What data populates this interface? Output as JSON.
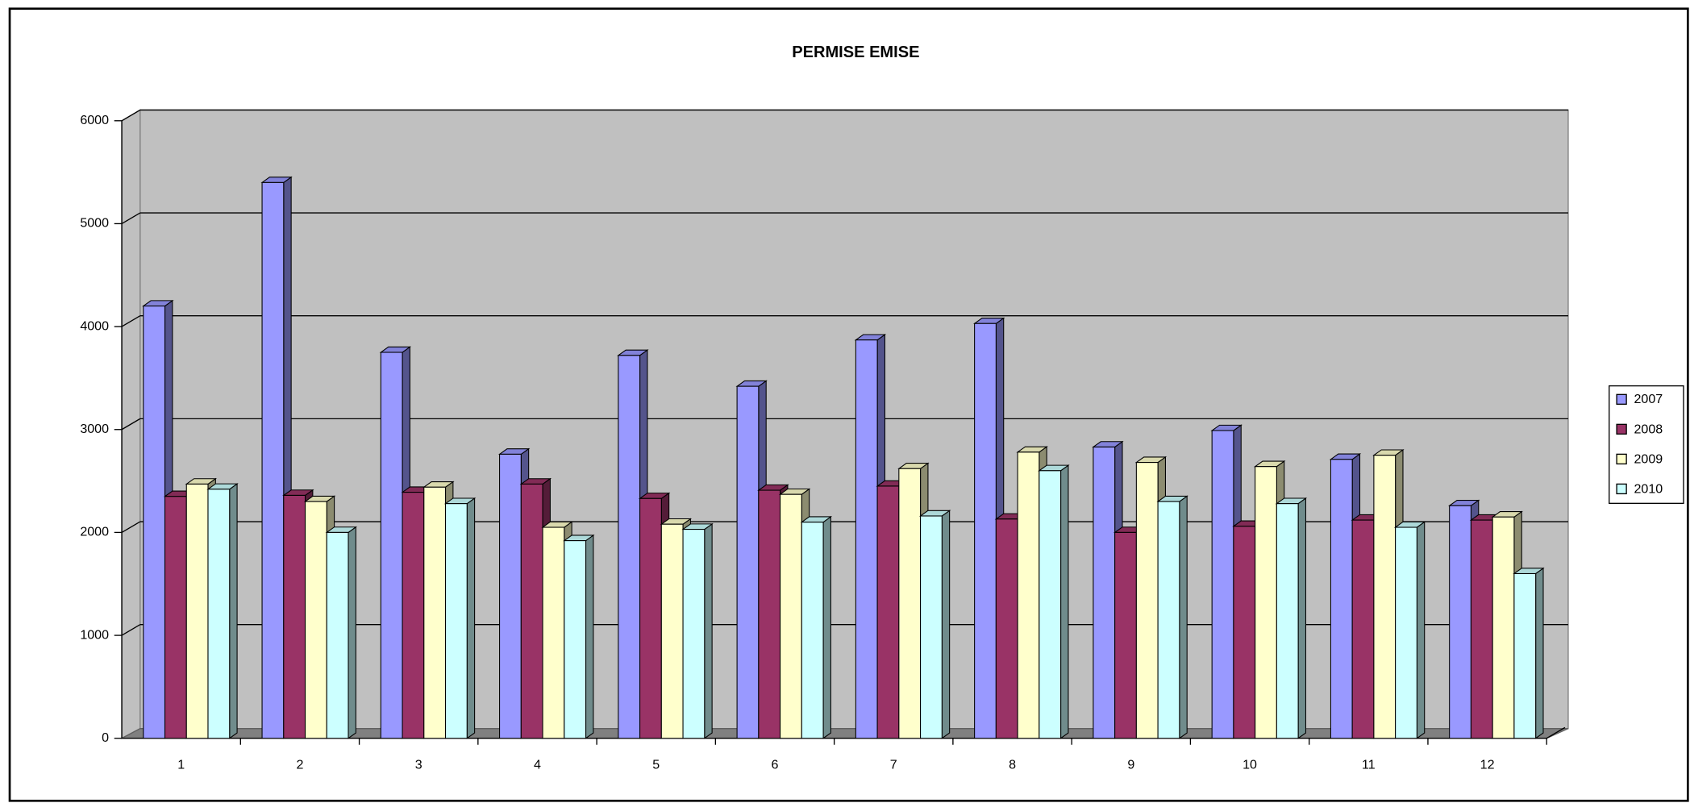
{
  "chart_data": {
    "type": "bar3d",
    "title": "PERMISE EMISE",
    "categories": [
      "1",
      "2",
      "3",
      "4",
      "5",
      "6",
      "7",
      "8",
      "9",
      "10",
      "11",
      "12"
    ],
    "series": [
      {
        "name": "2007",
        "color": "#9999ff",
        "values": [
          4200,
          5400,
          3750,
          2760,
          3720,
          3420,
          3870,
          4030,
          2830,
          2990,
          2710,
          2260
        ]
      },
      {
        "name": "2008",
        "color": "#993366",
        "values": [
          2350,
          2360,
          2390,
          2470,
          2330,
          2410,
          2450,
          2130,
          2000,
          2060,
          2120,
          2120
        ]
      },
      {
        "name": "2009",
        "color": "#ffffcc",
        "values": [
          2470,
          2300,
          2440,
          2050,
          2080,
          2370,
          2620,
          2780,
          2680,
          2640,
          2750,
          2150
        ]
      },
      {
        "name": "2010",
        "color": "#ccffff",
        "values": [
          2420,
          2000,
          2280,
          1920,
          2030,
          2100,
          2160,
          2600,
          2300,
          2280,
          2050,
          1600
        ]
      }
    ],
    "ylim": [
      0,
      6000
    ],
    "yticks": [
      0,
      1000,
      2000,
      3000,
      4000,
      5000,
      6000
    ],
    "grid": true,
    "legend": "right"
  }
}
